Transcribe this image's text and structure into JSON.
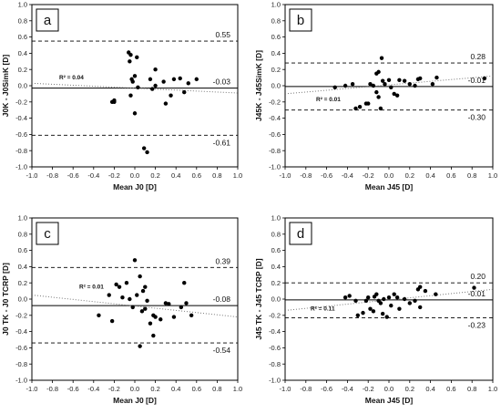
{
  "chart_data": [
    {
      "panel": "a",
      "type": "scatter",
      "xlabel": "Mean J0 [D]",
      "ylabel": "J0K - J0SimK [D]",
      "xlim": [
        -1.0,
        1.0
      ],
      "ylim": [
        -1.0,
        1.0
      ],
      "xticks": [
        "-1.0",
        "-0.8",
        "-0.6",
        "-0.4",
        "-0.2",
        "0.0",
        "0.2",
        "0.4",
        "0.6",
        "0.8",
        "1.0"
      ],
      "yticks": [
        "-1.0",
        "-0.8",
        "-0.6",
        "-0.4",
        "-0.2",
        "0.0",
        "0.2",
        "0.4",
        "0.6",
        "0.8",
        "1.0"
      ],
      "upper_loa": 0.55,
      "upper_label": "0.55",
      "mean": -0.03,
      "mean_label": "-0.03",
      "lower_loa": -0.61,
      "lower_label": "-0.61",
      "r2_label": "R² = 0.04",
      "trend": [
        [
          -1.0,
          0.03
        ],
        [
          1.0,
          -0.09
        ]
      ],
      "points": [
        [
          -0.22,
          -0.2
        ],
        [
          -0.2,
          -0.18
        ],
        [
          -0.2,
          -0.2
        ],
        [
          -0.06,
          0.41
        ],
        [
          -0.04,
          0.38
        ],
        [
          -0.05,
          0.3
        ],
        [
          -0.03,
          0.08
        ],
        [
          -0.02,
          0.05
        ],
        [
          0.0,
          0.12
        ],
        [
          -0.04,
          -0.12
        ],
        [
          0.02,
          0.35
        ],
        [
          0.0,
          -0.34
        ],
        [
          0.03,
          -0.02
        ],
        [
          0.09,
          -0.77
        ],
        [
          0.12,
          -0.82
        ],
        [
          0.15,
          0.08
        ],
        [
          0.17,
          -0.04
        ],
        [
          0.2,
          0.2
        ],
        [
          0.2,
          0.0
        ],
        [
          0.28,
          0.05
        ],
        [
          0.3,
          -0.22
        ],
        [
          0.35,
          -0.12
        ],
        [
          0.38,
          0.08
        ],
        [
          0.44,
          0.09
        ],
        [
          0.48,
          -0.08
        ],
        [
          0.52,
          0.03
        ],
        [
          0.6,
          0.08
        ]
      ]
    },
    {
      "panel": "b",
      "type": "scatter",
      "xlabel": "Mean J45 [D]",
      "ylabel": "J45K - J45SimK [D]",
      "xlim": [
        -1.0,
        1.0
      ],
      "ylim": [
        -1.0,
        1.0
      ],
      "xticks": [
        "-1.0",
        "-0.8",
        "-0.6",
        "-0.4",
        "-0.2",
        "0.0",
        "0.2",
        "0.4",
        "0.6",
        "0.8",
        "1.0"
      ],
      "yticks": [
        "-1.0",
        "-0.8",
        "-0.6",
        "-0.4",
        "-0.2",
        "0.0",
        "0.2",
        "0.4",
        "0.6",
        "0.8",
        "1.0"
      ],
      "upper_loa": 0.28,
      "upper_label": "0.28",
      "mean": -0.01,
      "mean_label": "-0.01",
      "lower_loa": -0.3,
      "lower_label": "-0.30",
      "r2_label": "R² = 0.01",
      "trend": [
        [
          -1.0,
          -0.1
        ],
        [
          1.0,
          0.12
        ]
      ],
      "points": [
        [
          -0.52,
          -0.02
        ],
        [
          -0.42,
          0.0
        ],
        [
          -0.35,
          0.02
        ],
        [
          -0.32,
          -0.28
        ],
        [
          -0.28,
          -0.26
        ],
        [
          -0.22,
          -0.22
        ],
        [
          -0.2,
          -0.22
        ],
        [
          -0.18,
          0.02
        ],
        [
          -0.15,
          0.0
        ],
        [
          -0.12,
          0.15
        ],
        [
          -0.1,
          0.17
        ],
        [
          -0.12,
          -0.08
        ],
        [
          -0.1,
          -0.14
        ],
        [
          -0.08,
          -0.28
        ],
        [
          -0.07,
          0.34
        ],
        [
          -0.06,
          0.06
        ],
        [
          -0.04,
          0.02
        ],
        [
          0.0,
          0.07
        ],
        [
          0.02,
          -0.02
        ],
        [
          0.05,
          -0.1
        ],
        [
          0.08,
          -0.12
        ],
        [
          0.1,
          0.07
        ],
        [
          0.15,
          0.06
        ],
        [
          0.2,
          0.02
        ],
        [
          0.25,
          0.0
        ],
        [
          0.28,
          0.08
        ],
        [
          0.3,
          0.09
        ],
        [
          0.42,
          0.02
        ],
        [
          0.46,
          0.1
        ],
        [
          0.92,
          0.09
        ]
      ]
    },
    {
      "panel": "c",
      "type": "scatter",
      "xlabel": "Mean J0 [D]",
      "ylabel": "J0 TK - J0 TCRP [D]",
      "xlim": [
        -1.0,
        1.0
      ],
      "ylim": [
        -1.0,
        1.0
      ],
      "xticks": [
        "-1.0",
        "-0.8",
        "-0.6",
        "-0.4",
        "-0.2",
        "0.0",
        "0.2",
        "0.4",
        "0.6",
        "0.8",
        "1.0"
      ],
      "yticks": [
        "-1.0",
        "-0.8",
        "-0.6",
        "-0.4",
        "-0.2",
        "0.0",
        "0.2",
        "0.4",
        "0.6",
        "0.8",
        "1.0"
      ],
      "upper_loa": 0.39,
      "upper_label": "0.39",
      "mean": -0.08,
      "mean_label": "-0.08",
      "lower_loa": -0.54,
      "lower_label": "-0.54",
      "r2_label": "R² = 0.01",
      "trend": [
        [
          -1.0,
          0.05
        ],
        [
          1.0,
          -0.22
        ]
      ],
      "points": [
        [
          -0.35,
          -0.2
        ],
        [
          -0.25,
          0.05
        ],
        [
          -0.22,
          -0.27
        ],
        [
          -0.18,
          0.18
        ],
        [
          -0.15,
          0.15
        ],
        [
          -0.12,
          0.02
        ],
        [
          -0.08,
          0.2
        ],
        [
          -0.05,
          0.0
        ],
        [
          -0.02,
          -0.1
        ],
        [
          0.0,
          0.48
        ],
        [
          0.02,
          0.05
        ],
        [
          0.05,
          0.28
        ],
        [
          0.07,
          -0.15
        ],
        [
          0.05,
          -0.58
        ],
        [
          0.08,
          0.1
        ],
        [
          0.1,
          0.15
        ],
        [
          0.1,
          -0.12
        ],
        [
          0.12,
          -0.02
        ],
        [
          0.15,
          -0.3
        ],
        [
          0.18,
          -0.45
        ],
        [
          0.18,
          -0.2
        ],
        [
          0.2,
          -0.22
        ],
        [
          0.25,
          -0.25
        ],
        [
          0.3,
          -0.05
        ],
        [
          0.33,
          -0.06
        ],
        [
          0.38,
          -0.22
        ],
        [
          0.45,
          -0.1
        ],
        [
          0.48,
          0.2
        ],
        [
          0.5,
          -0.05
        ],
        [
          0.55,
          -0.2
        ]
      ]
    },
    {
      "panel": "d",
      "type": "scatter",
      "xlabel": "Mean J45 [D]",
      "ylabel": "J45 TK - J45 TCRP [D]",
      "xlim": [
        -1.0,
        1.0
      ],
      "ylim": [
        -1.0,
        1.0
      ],
      "xticks": [
        "-1.0",
        "-0.8",
        "-0.6",
        "-0.4",
        "-0.2",
        "0.0",
        "0.2",
        "0.4",
        "0.6",
        "0.8",
        "1.0"
      ],
      "yticks": [
        "-1.0",
        "-0.8",
        "-0.6",
        "-0.4",
        "-0.2",
        "0.0",
        "0.2",
        "0.4",
        "0.6",
        "0.8",
        "1.0"
      ],
      "upper_loa": 0.2,
      "upper_label": "0.20",
      "mean": -0.01,
      "mean_label": "-0.01",
      "lower_loa": -0.23,
      "lower_label": "-0.23",
      "r2_label": "R² = 0.11",
      "trend": [
        [
          -1.0,
          -0.14
        ],
        [
          1.0,
          0.12
        ]
      ],
      "points": [
        [
          -0.42,
          0.02
        ],
        [
          -0.38,
          0.04
        ],
        [
          -0.32,
          -0.02
        ],
        [
          -0.3,
          -0.2
        ],
        [
          -0.25,
          -0.17
        ],
        [
          -0.22,
          -0.02
        ],
        [
          -0.2,
          0.02
        ],
        [
          -0.18,
          -0.12
        ],
        [
          -0.15,
          -0.15
        ],
        [
          -0.14,
          0.03
        ],
        [
          -0.12,
          0.06
        ],
        [
          -0.1,
          -0.02
        ],
        [
          -0.08,
          -0.05
        ],
        [
          -0.06,
          -0.18
        ],
        [
          -0.05,
          0.0
        ],
        [
          -0.02,
          -0.22
        ],
        [
          0.0,
          0.02
        ],
        [
          0.02,
          -0.08
        ],
        [
          0.05,
          0.06
        ],
        [
          0.08,
          0.02
        ],
        [
          0.1,
          -0.12
        ],
        [
          0.15,
          0.0
        ],
        [
          0.2,
          -0.05
        ],
        [
          0.25,
          -0.02
        ],
        [
          0.28,
          0.12
        ],
        [
          0.3,
          0.15
        ],
        [
          0.35,
          0.1
        ],
        [
          0.3,
          -0.1
        ],
        [
          0.45,
          0.06
        ],
        [
          0.82,
          0.14
        ]
      ]
    }
  ]
}
